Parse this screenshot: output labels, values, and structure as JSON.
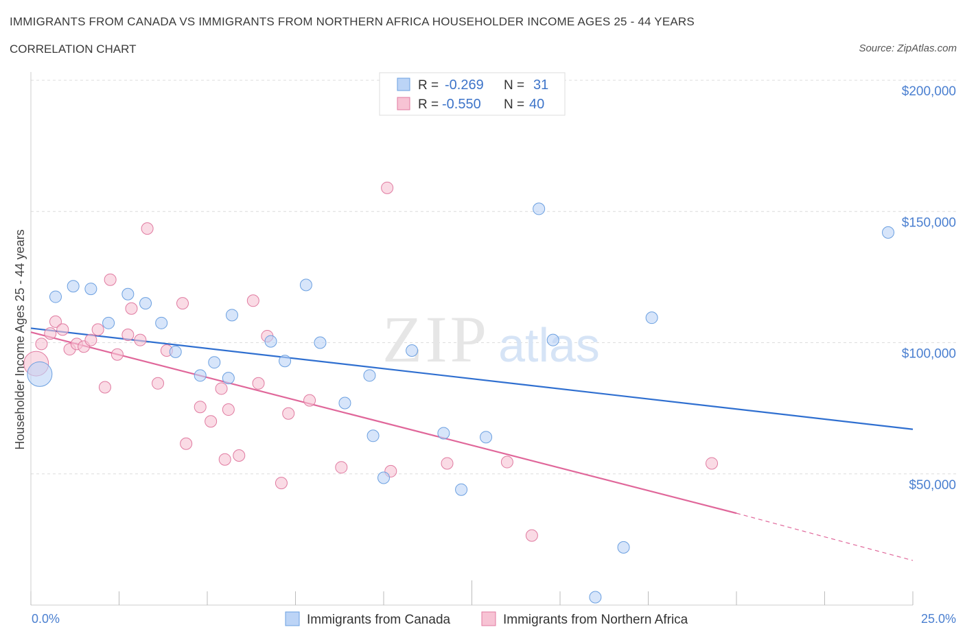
{
  "title": "IMMIGRANTS FROM CANADA VS IMMIGRANTS FROM NORTHERN AFRICA HOUSEHOLDER INCOME AGES 25 - 44 YEARS",
  "subtitle": "CORRELATION CHART",
  "source": "Source: ZipAtlas.com",
  "watermark": {
    "zip": "ZIP",
    "atlas": "atlas"
  },
  "colors": {
    "canada": "#6a9fe0",
    "canada_fill": "#bcd4f6",
    "africa": "#e07aa0",
    "africa_fill": "#f7c3d4",
    "canada_line": "#2f6fd0",
    "africa_line": "#e0679a",
    "tick_text": "#4a7fd0"
  },
  "legend_box": {
    "rows": [
      {
        "r_label": "R =",
        "r_value": "-0.269",
        "n_label": "N =",
        "n_value": "31"
      },
      {
        "r_label": "R =",
        "r_value": "-0.550",
        "n_label": "N =",
        "n_value": "40"
      }
    ]
  },
  "bottom_legend": [
    "Immigrants from Canada",
    "Immigrants from Northern Africa"
  ],
  "chart_data": {
    "type": "scatter",
    "title": "IMMIGRANTS FROM CANADA VS IMMIGRANTS FROM NORTHERN AFRICA HOUSEHOLDER INCOME AGES 25 - 44 YEARS",
    "ylabel": "Householder Income Ages 25 - 44 years",
    "xlabel": "",
    "x_tick_labels": [
      "0.0%",
      "25.0%"
    ],
    "y_tick_labels": [
      "$50,000",
      "$100,000",
      "$150,000",
      "$200,000"
    ],
    "xlim": [
      0,
      25
    ],
    "ylim": [
      0,
      210000
    ],
    "grid": true,
    "legend": "top-center",
    "series": [
      {
        "name": "Immigrants from Canada",
        "color": "#6a9fe0",
        "trend": {
          "x": [
            0,
            25
          ],
          "y": [
            105500,
            67000
          ]
        },
        "points": [
          {
            "x": 0.25,
            "y": 88000,
            "big": true
          },
          {
            "x": 0.7,
            "y": 117500
          },
          {
            "x": 1.2,
            "y": 121500
          },
          {
            "x": 1.7,
            "y": 120500
          },
          {
            "x": 2.2,
            "y": 107500
          },
          {
            "x": 2.75,
            "y": 118500
          },
          {
            "x": 3.25,
            "y": 115000
          },
          {
            "x": 3.7,
            "y": 107500
          },
          {
            "x": 4.1,
            "y": 96500
          },
          {
            "x": 4.8,
            "y": 87500
          },
          {
            "x": 5.2,
            "y": 92500
          },
          {
            "x": 5.7,
            "y": 110500
          },
          {
            "x": 5.6,
            "y": 86500
          },
          {
            "x": 6.8,
            "y": 100500
          },
          {
            "x": 7.2,
            "y": 93000
          },
          {
            "x": 7.8,
            "y": 122000
          },
          {
            "x": 8.2,
            "y": 100000
          },
          {
            "x": 8.9,
            "y": 77000
          },
          {
            "x": 9.6,
            "y": 87500
          },
          {
            "x": 9.7,
            "y": 64500
          },
          {
            "x": 10.0,
            "y": 48500
          },
          {
            "x": 10.8,
            "y": 97000
          },
          {
            "x": 11.7,
            "y": 65500
          },
          {
            "x": 12.2,
            "y": 44000
          },
          {
            "x": 12.9,
            "y": 64000
          },
          {
            "x": 14.4,
            "y": 151000
          },
          {
            "x": 14.8,
            "y": 101000
          },
          {
            "x": 16.0,
            "y": 3000
          },
          {
            "x": 16.8,
            "y": 22000
          },
          {
            "x": 17.6,
            "y": 109500
          },
          {
            "x": 24.3,
            "y": 142000
          }
        ]
      },
      {
        "name": "Immigrants from Northern Africa",
        "color": "#e07aa0",
        "trend": {
          "x": [
            0,
            20
          ],
          "y": [
            104000,
            35000
          ]
        },
        "trend_dashed": {
          "x": [
            20,
            25
          ],
          "y": [
            35000,
            17000
          ]
        },
        "points": [
          {
            "x": 0.15,
            "y": 92000,
            "big": true
          },
          {
            "x": 0.3,
            "y": 99500
          },
          {
            "x": 0.55,
            "y": 103500
          },
          {
            "x": 0.7,
            "y": 108000
          },
          {
            "x": 0.9,
            "y": 105000
          },
          {
            "x": 1.1,
            "y": 97500
          },
          {
            "x": 1.3,
            "y": 99500
          },
          {
            "x": 1.5,
            "y": 98500
          },
          {
            "x": 1.7,
            "y": 101000
          },
          {
            "x": 1.9,
            "y": 105000
          },
          {
            "x": 2.1,
            "y": 83000
          },
          {
            "x": 2.25,
            "y": 124000
          },
          {
            "x": 2.45,
            "y": 95500
          },
          {
            "x": 2.75,
            "y": 103000
          },
          {
            "x": 2.85,
            "y": 113000
          },
          {
            "x": 3.1,
            "y": 101000
          },
          {
            "x": 3.3,
            "y": 143500
          },
          {
            "x": 3.6,
            "y": 84500
          },
          {
            "x": 3.85,
            "y": 97000
          },
          {
            "x": 4.3,
            "y": 115000
          },
          {
            "x": 4.4,
            "y": 61500
          },
          {
            "x": 4.8,
            "y": 75500
          },
          {
            "x": 5.1,
            "y": 70000
          },
          {
            "x": 5.4,
            "y": 82500
          },
          {
            "x": 5.5,
            "y": 55500
          },
          {
            "x": 5.6,
            "y": 74500
          },
          {
            "x": 5.9,
            "y": 57000
          },
          {
            "x": 6.3,
            "y": 116000
          },
          {
            "x": 6.45,
            "y": 84500
          },
          {
            "x": 6.7,
            "y": 102500
          },
          {
            "x": 7.1,
            "y": 46500
          },
          {
            "x": 7.3,
            "y": 73000
          },
          {
            "x": 7.9,
            "y": 78000
          },
          {
            "x": 8.8,
            "y": 52500
          },
          {
            "x": 10.1,
            "y": 159000
          },
          {
            "x": 10.2,
            "y": 51000
          },
          {
            "x": 11.8,
            "y": 54000
          },
          {
            "x": 13.5,
            "y": 54500
          },
          {
            "x": 14.2,
            "y": 26500
          },
          {
            "x": 19.3,
            "y": 54000
          }
        ]
      }
    ]
  }
}
